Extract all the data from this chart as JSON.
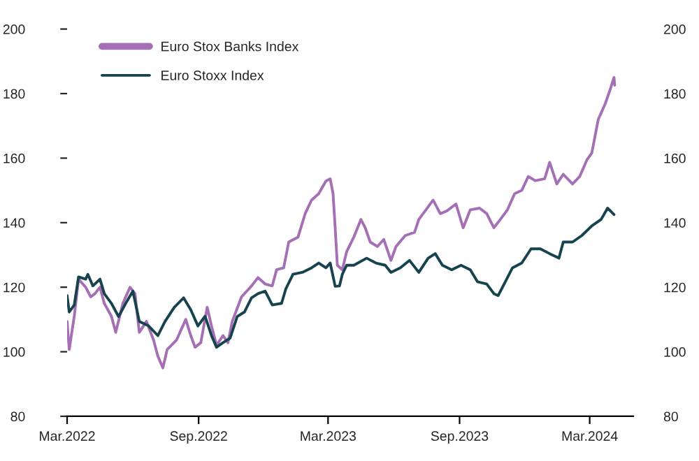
{
  "chart_data": {
    "type": "line",
    "series": [
      {
        "name": "Euro Stox Banks Index",
        "color": "#a46fb4",
        "x": [
          "2022-03-01",
          "2022-03-04",
          "2022-03-11",
          "2022-03-17",
          "2022-03-27",
          "2022-04-03",
          "2022-04-09",
          "2022-04-16",
          "2022-04-22",
          "2022-05-02",
          "2022-05-08",
          "2022-05-18",
          "2022-05-28",
          "2022-06-04",
          "2022-06-10",
          "2022-06-20",
          "2022-06-30",
          "2022-07-06",
          "2022-07-13",
          "2022-07-19",
          "2022-08-01",
          "2022-08-14",
          "2022-08-21",
          "2022-08-27",
          "2022-09-04",
          "2022-09-13",
          "2022-09-19",
          "2022-09-26",
          "2022-10-05",
          "2022-10-12",
          "2022-10-18",
          "2022-10-31",
          "2022-11-14",
          "2022-11-23",
          "2022-12-03",
          "2022-12-13",
          "2022-12-19",
          "2022-12-29",
          "2023-01-05",
          "2023-01-18",
          "2023-01-28",
          "2023-02-06",
          "2023-02-16",
          "2023-02-26",
          "2023-03-04",
          "2023-03-08",
          "2023-03-11",
          "2023-03-14",
          "2023-03-21",
          "2023-03-27",
          "2023-04-06",
          "2023-04-16",
          "2023-04-22",
          "2023-04-29",
          "2023-05-09",
          "2023-05-18",
          "2023-05-28",
          "2023-06-04",
          "2023-06-17",
          "2023-06-30",
          "2023-07-06",
          "2023-07-16",
          "2023-07-26",
          "2023-08-05",
          "2023-08-14",
          "2023-08-27",
          "2023-09-06",
          "2023-09-16",
          "2023-09-29",
          "2023-10-09",
          "2023-10-19",
          "2023-10-28",
          "2023-11-07",
          "2023-11-17",
          "2023-11-27",
          "2023-12-06",
          "2023-12-16",
          "2023-12-29",
          "2024-01-05",
          "2024-01-15",
          "2024-01-24",
          "2024-02-06",
          "2024-02-16",
          "2024-02-26",
          "2024-03-04",
          "2024-03-13",
          "2024-03-23",
          "2024-03-30",
          "2024-04-04",
          "2024-04-05"
        ],
        "values": [
          109.4,
          100.7,
          111,
          122.5,
          120,
          117,
          118,
          120,
          115,
          111,
          106,
          115,
          120,
          118,
          106,
          109.4,
          103.6,
          98.6,
          95,
          100.7,
          103.6,
          110,
          105,
          101.4,
          102.8,
          113.8,
          108,
          102,
          105,
          102.8,
          109.4,
          117,
          120.4,
          123,
          121,
          120.4,
          125.4,
          126,
          134,
          135.5,
          142.8,
          147,
          149,
          152.9,
          153.6,
          149,
          138.4,
          126.8,
          125.4,
          131,
          135.5,
          141,
          138.4,
          134,
          132.6,
          134.8,
          128.3,
          132.6,
          136,
          137,
          141,
          144,
          147,
          142.8,
          143.6,
          145.8,
          138.4,
          144,
          144.5,
          142.8,
          138.4,
          141,
          144,
          149,
          150,
          154.3,
          153,
          153.6,
          158.7,
          152,
          155,
          152,
          154.3,
          159.4,
          161.6,
          172,
          177,
          181.5,
          185,
          182.6
        ]
      },
      {
        "name": "Euro Stoxx Index",
        "color": "#17434f",
        "x": [
          "2022-03-01",
          "2022-03-04",
          "2022-03-11",
          "2022-03-17",
          "2022-03-27",
          "2022-03-30",
          "2022-04-06",
          "2022-04-16",
          "2022-04-22",
          "2022-05-02",
          "2022-05-12",
          "2022-05-22",
          "2022-06-01",
          "2022-06-10",
          "2022-06-23",
          "2022-07-06",
          "2022-07-16",
          "2022-07-29",
          "2022-08-11",
          "2022-08-21",
          "2022-08-31",
          "2022-09-10",
          "2022-09-19",
          "2022-09-26",
          "2022-10-05",
          "2022-10-15",
          "2022-10-25",
          "2022-11-04",
          "2022-11-14",
          "2022-11-23",
          "2022-12-03",
          "2022-12-13",
          "2022-12-26",
          "2023-01-01",
          "2023-01-11",
          "2023-01-24",
          "2023-02-06",
          "2023-02-16",
          "2023-02-26",
          "2023-03-04",
          "2023-03-11",
          "2023-03-17",
          "2023-03-21",
          "2023-03-27",
          "2023-04-06",
          "2023-04-24",
          "2023-05-07",
          "2023-05-20",
          "2023-05-28",
          "2023-06-10",
          "2023-06-23",
          "2023-07-06",
          "2023-07-19",
          "2023-07-29",
          "2023-08-08",
          "2023-08-21",
          "2023-09-03",
          "2023-09-16",
          "2023-09-26",
          "2023-10-09",
          "2023-10-19",
          "2023-10-25",
          "2023-11-04",
          "2023-11-14",
          "2023-11-27",
          "2023-12-10",
          "2023-12-23",
          "2024-01-05",
          "2024-01-18",
          "2024-01-24",
          "2024-02-06",
          "2024-02-19",
          "2024-03-04",
          "2024-03-17",
          "2024-03-26",
          "2024-04-04"
        ],
        "values": [
          117.4,
          112.3,
          114.5,
          123.2,
          122.5,
          124,
          120.4,
          122.5,
          118,
          115,
          110.9,
          115,
          118.8,
          109.4,
          108,
          105,
          109.4,
          113.8,
          116.7,
          113,
          108,
          111,
          105,
          101.4,
          102.8,
          104.2,
          110.9,
          112.3,
          116.7,
          118,
          118.8,
          114.5,
          115,
          119.5,
          124,
          124.6,
          126,
          127.5,
          126,
          127.5,
          120.3,
          120.4,
          124,
          126.8,
          126.8,
          129,
          127.5,
          126.8,
          124.6,
          126,
          128.3,
          124.6,
          129,
          130.4,
          126.8,
          125.4,
          126.8,
          125.4,
          121.7,
          121,
          118,
          117.4,
          121.7,
          126,
          127.5,
          131.9,
          131.9,
          130.4,
          129,
          134,
          134,
          136,
          139,
          141,
          144.5,
          142.5
        ]
      }
    ],
    "xlim": [
      "2022-03-01",
      "2024-05-01"
    ],
    "xticks": [
      {
        "value": "2022-03-01",
        "label": "Mar.2022"
      },
      {
        "value": "2022-09-01",
        "label": "Sep.2022"
      },
      {
        "value": "2023-03-01",
        "label": "Mar.2023"
      },
      {
        "value": "2023-09-01",
        "label": "Sep.2023"
      },
      {
        "value": "2024-03-01",
        "label": "Mar.2024"
      }
    ],
    "ylim": [
      80,
      200
    ],
    "yticks": [
      80,
      100,
      120,
      140,
      160,
      180,
      200
    ],
    "y2lim": [
      80,
      200
    ],
    "y2ticks": [
      80,
      100,
      120,
      140,
      160,
      180,
      200
    ],
    "grid": false,
    "legend": "top left",
    "line_style": "solid"
  }
}
